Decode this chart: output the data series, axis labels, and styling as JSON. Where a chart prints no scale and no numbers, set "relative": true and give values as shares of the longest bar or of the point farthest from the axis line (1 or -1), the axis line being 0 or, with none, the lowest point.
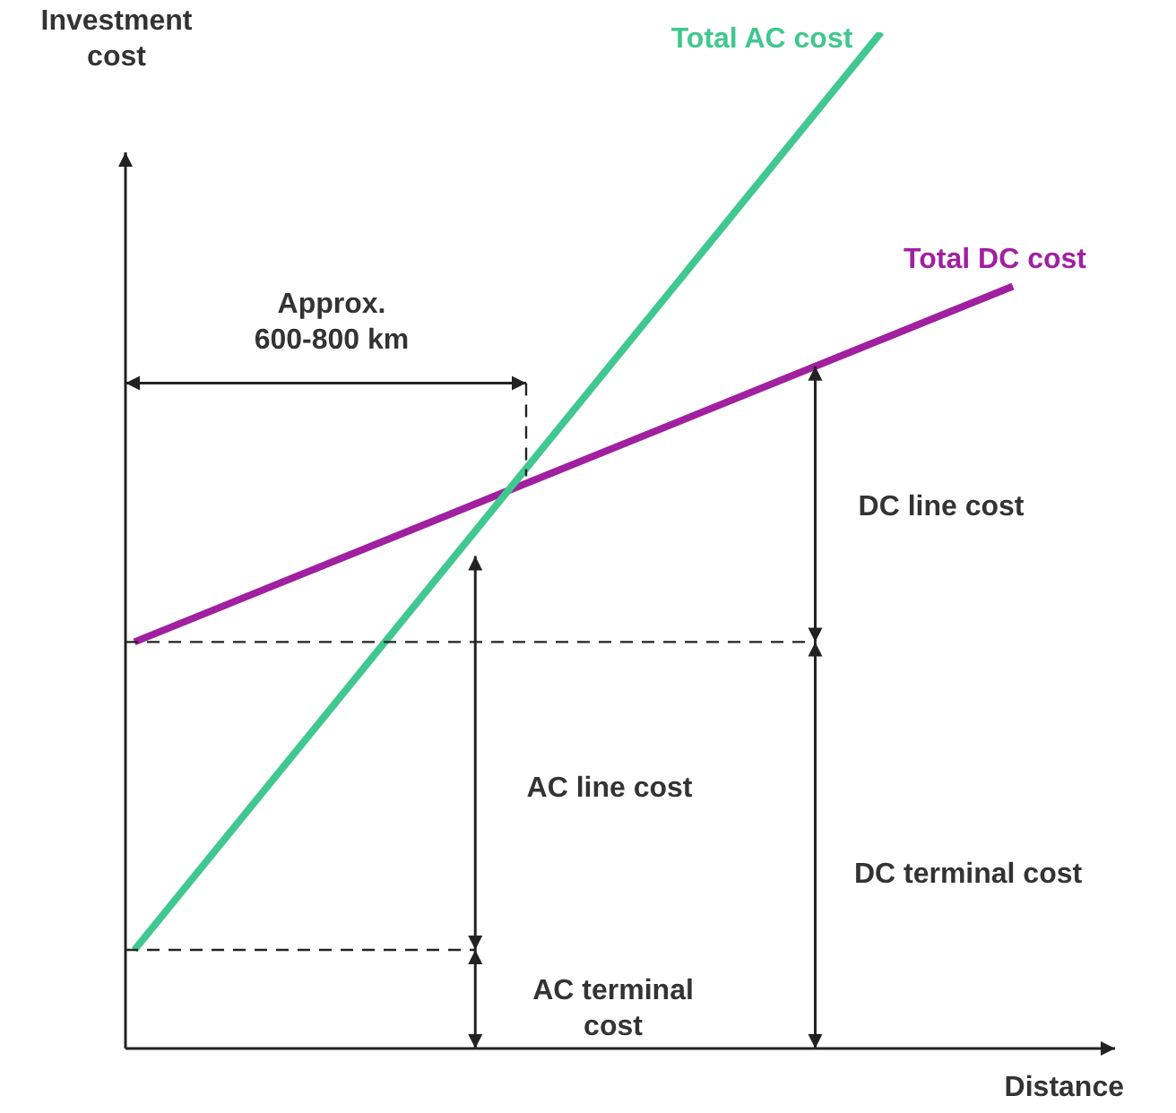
{
  "chart_data": {
    "type": "line",
    "relative": true,
    "xlabel": "Distance",
    "ylabel": "Investment cost",
    "categories": [
      null,
      null,
      null,
      null,
      null,
      null,
      null,
      null,
      null,
      null,
      null,
      null,
      null,
      null,
      null,
      null,
      null,
      null,
      null,
      null,
      null
    ],
    "series": [
      {
        "name": "Total AC cost",
        "color": "#40c890",
        "values": [
          0.097,
          null,
          null,
          null,
          null,
          null,
          null,
          null,
          null,
          null,
          null,
          null,
          null,
          null,
          null,
          null,
          null,
          1,
          null,
          null,
          null
        ]
      },
      {
        "name": "Total DC cost",
        "color": "#a020a0",
        "values": [
          0.4,
          null,
          null,
          null,
          null,
          null,
          null,
          null,
          null,
          null,
          null,
          null,
          null,
          null,
          null,
          null,
          null,
          null,
          null,
          null,
          0.75
        ]
      }
    ],
    "annotations": [
      "Approx. 600-800 km",
      "DC line cost",
      "AC line cost",
      "DC terminal cost",
      "AC terminal cost"
    ]
  }
}
